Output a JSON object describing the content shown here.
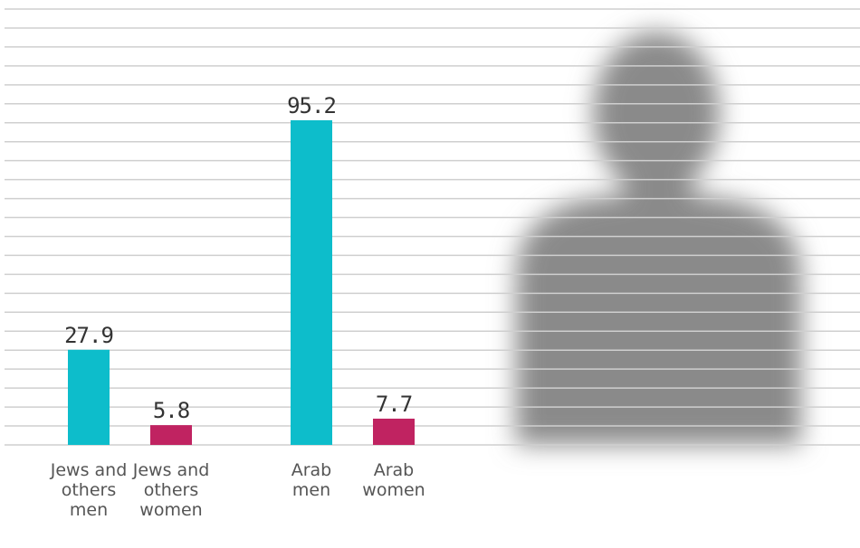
{
  "chart_data": {
    "type": "bar",
    "categories": [
      "Jews and others men",
      "Jews and others women",
      "Arab men",
      "Arab women"
    ],
    "values": [
      27.9,
      5.8,
      95.2,
      7.7
    ],
    "colors": [
      "#0dbdcb",
      "#c02361",
      "#0dbdcb",
      "#c02361"
    ]
  }
}
